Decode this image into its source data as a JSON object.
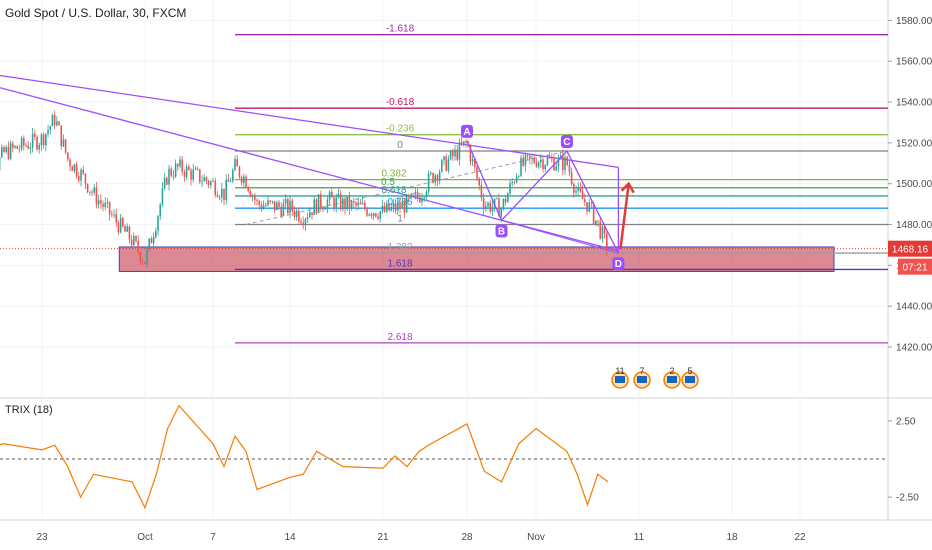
{
  "header": {
    "title": "Gold Spot / U.S. Dollar, 30, FXCM"
  },
  "chart_data": [
    {
      "type": "candlestick",
      "title": "Gold Spot / U.S. Dollar, 30, FXCM",
      "ylim": [
        1395,
        1590
      ],
      "y_ticks": [
        "1580.00",
        "1560.00",
        "1540.00",
        "1520.00",
        "1500.00",
        "1480.00",
        "1460.00",
        "1440.00",
        "1420.00"
      ],
      "y_tick_values": [
        1580,
        1560,
        1540,
        1520,
        1500,
        1480,
        1460,
        1440,
        1420
      ],
      "x_ticks": [
        "23",
        "Oct",
        "7",
        "14",
        "21",
        "28",
        "Nov",
        "11",
        "18",
        "22"
      ],
      "x_tick_dates": [
        "2019-09-23",
        "2019-10-01",
        "2019-10-07",
        "2019-10-14",
        "2019-10-21",
        "2019-10-28",
        "2019-11-01",
        "2019-11-11",
        "2019-11-18",
        "2019-11-22"
      ],
      "price_label": "1468.16",
      "price_value": 1468.16,
      "countdown_label": "07:21",
      "price_path": [
        [
          "2019-09-18",
          1498
        ],
        [
          "2019-09-19",
          1503
        ],
        [
          "2019-09-20",
          1515
        ],
        [
          "2019-09-23",
          1522
        ],
        [
          "2019-09-24",
          1532
        ],
        [
          "2019-09-25",
          1512
        ],
        [
          "2019-09-26",
          1505
        ],
        [
          "2019-09-27",
          1495
        ],
        [
          "2019-09-30",
          1472
        ],
        [
          "2019-10-01",
          1462
        ],
        [
          "2019-10-02",
          1482
        ],
        [
          "2019-10-03",
          1505
        ],
        [
          "2019-10-04",
          1508
        ],
        [
          "2019-10-07",
          1500
        ],
        [
          "2019-10-08",
          1495
        ],
        [
          "2019-10-09",
          1508
        ],
        [
          "2019-10-10",
          1502
        ],
        [
          "2019-10-11",
          1490
        ],
        [
          "2019-10-14",
          1488
        ],
        [
          "2019-10-15",
          1484
        ],
        [
          "2019-10-16",
          1490
        ],
        [
          "2019-10-17",
          1492
        ],
        [
          "2019-10-18",
          1490
        ],
        [
          "2019-10-21",
          1486
        ],
        [
          "2019-10-22",
          1488
        ],
        [
          "2019-10-23",
          1490
        ],
        [
          "2019-10-24",
          1494
        ],
        [
          "2019-10-25",
          1503
        ],
        [
          "2019-10-28",
          1520
        ],
        [
          "2019-10-29",
          1490
        ],
        [
          "2019-10-30",
          1488
        ],
        [
          "2019-10-31",
          1508
        ],
        [
          "2019-11-01",
          1512
        ],
        [
          "2019-11-04",
          1510
        ],
        [
          "2019-11-05",
          1495
        ],
        [
          "2019-11-06",
          1490
        ],
        [
          "2019-11-07",
          1480
        ],
        [
          "2019-11-08",
          1468
        ]
      ],
      "fib_levels": [
        {
          "label": "-1.618",
          "value": 1573,
          "color": "#9c27b0"
        },
        {
          "label": "-0.618",
          "value": 1537,
          "color": "#c2185b"
        },
        {
          "label": "-0.236",
          "value": 1524,
          "color": "#8bc34a"
        },
        {
          "label": "0",
          "value": 1516,
          "color": "#808080"
        },
        {
          "label": "0.382",
          "value": 1502,
          "color": "#7cb342"
        },
        {
          "label": "0.5",
          "value": 1498,
          "color": "#43a047"
        },
        {
          "label": "0.618",
          "value": 1494,
          "color": "#26a69a"
        },
        {
          "label": "0.786",
          "value": 1488,
          "color": "#2196f3"
        },
        {
          "label": "1",
          "value": 1480,
          "color": "#808080"
        },
        {
          "label": "1.382",
          "value": 1466,
          "color": "#9e9e9e"
        },
        {
          "label": "1.618",
          "value": 1458,
          "color": "#5e35b1"
        },
        {
          "label": "2.618",
          "value": 1422,
          "color": "#ab47bc"
        }
      ],
      "harmonic_points": [
        {
          "label": "A",
          "date": "2019-10-28",
          "value": 1521
        },
        {
          "label": "B",
          "date": "2019-10-30",
          "value": 1482
        },
        {
          "label": "C",
          "date": "2019-11-04",
          "value": 1516
        },
        {
          "label": "D",
          "date": "2019-11-09",
          "value": 1466
        }
      ],
      "pattern_color": "#9c4dff",
      "arrow_color": "#e53935",
      "zone_color": "#c0283c",
      "event_badges": [
        "11",
        "7",
        "2",
        "5"
      ]
    },
    {
      "type": "line",
      "title": "TRIX (18)",
      "ylim": [
        -4,
        4
      ],
      "y_ticks": [
        "2.50",
        "-2.50"
      ],
      "y_tick_values": [
        2.5,
        -2.5
      ],
      "series": [
        {
          "name": "TRIX (18)",
          "color": "#f57c00",
          "values": [
            [
              "2019-09-18",
              0.2
            ],
            [
              "2019-09-19",
              0.8
            ],
            [
              "2019-09-20",
              1.0
            ],
            [
              "2019-09-23",
              0.6
            ],
            [
              "2019-09-24",
              0.9
            ],
            [
              "2019-09-25",
              -0.5
            ],
            [
              "2019-09-26",
              -2.5
            ],
            [
              "2019-09-27",
              -1.0
            ],
            [
              "2019-09-30",
              -1.5
            ],
            [
              "2019-10-01",
              -3.2
            ],
            [
              "2019-10-02",
              -1.0
            ],
            [
              "2019-10-03",
              2.0
            ],
            [
              "2019-10-04",
              3.5
            ],
            [
              "2019-10-07",
              1.0
            ],
            [
              "2019-10-08",
              -0.5
            ],
            [
              "2019-10-09",
              1.5
            ],
            [
              "2019-10-10",
              0.5
            ],
            [
              "2019-10-11",
              -2.0
            ],
            [
              "2019-10-14",
              -1.2
            ],
            [
              "2019-10-15",
              -1.0
            ],
            [
              "2019-10-16",
              0.5
            ],
            [
              "2019-10-17",
              0.0
            ],
            [
              "2019-10-18",
              -0.5
            ],
            [
              "2019-10-21",
              -0.6
            ],
            [
              "2019-10-22",
              0.2
            ],
            [
              "2019-10-23",
              -0.5
            ],
            [
              "2019-10-24",
              0.5
            ],
            [
              "2019-10-25",
              1.0
            ],
            [
              "2019-10-28",
              2.3
            ],
            [
              "2019-10-29",
              -0.8
            ],
            [
              "2019-10-30",
              -1.5
            ],
            [
              "2019-10-31",
              1.0
            ],
            [
              "2019-11-01",
              2.0
            ],
            [
              "2019-11-04",
              0.5
            ],
            [
              "2019-11-05",
              -1.0
            ],
            [
              "2019-11-06",
              -3.0
            ],
            [
              "2019-11-07",
              -1.0
            ],
            [
              "2019-11-08",
              -1.5
            ]
          ]
        }
      ],
      "zero_line": 0
    }
  ]
}
